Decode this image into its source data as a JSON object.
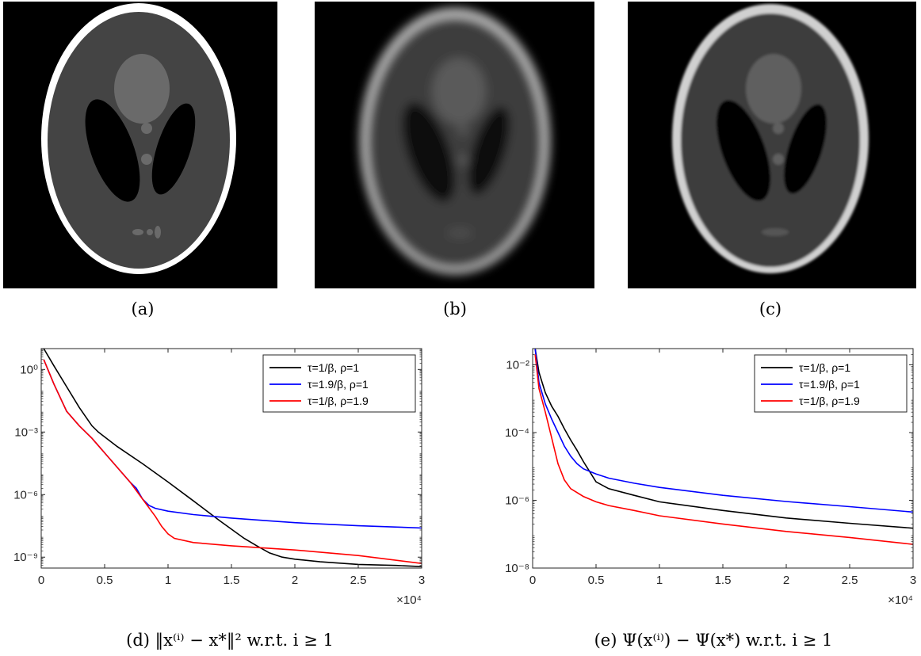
{
  "captions": {
    "a": "(a)",
    "b": "(b)",
    "c": "(c)",
    "d": "(d) ‖x⁽ⁱ⁾ − x*‖² w.r.t. i ≥ 1",
    "e": "(e) Ψ(x⁽ⁱ⁾) − Ψ(x*) w.r.t. i ≥ 1"
  },
  "colors": {
    "series1": "#000000",
    "series2": "#0000ff",
    "series3": "#ff0000",
    "background": "#000000"
  },
  "chart_data": [
    {
      "type": "line",
      "y_scale": "log",
      "xlim": [
        0,
        30000
      ],
      "ylim": [
        3e-10,
        10
      ],
      "x_ticks": [
        0,
        5000,
        10000,
        15000,
        20000,
        25000,
        30000
      ],
      "x_tick_labels": [
        "0",
        "0.5",
        "1",
        "1.5",
        "2",
        "2.5",
        "3"
      ],
      "x_multiplier": "×10⁴",
      "y_ticks": [
        1e-09,
        1e-06,
        0.001,
        1
      ],
      "y_tick_labels": [
        "10⁻⁹",
        "10⁻⁶",
        "10⁻³",
        "10⁰"
      ],
      "legend_position": "top-right",
      "grid": false,
      "series": [
        {
          "name": "τ=1/β, ρ=1",
          "color": "#000000",
          "x": [
            200,
            1000,
            2000,
            3000,
            4000,
            4500,
            6000,
            8000,
            10000,
            12000,
            14000,
            16000,
            17000,
            18000,
            19000,
            20000,
            22000,
            25000,
            28000,
            30000
          ],
          "y": [
            10,
            1.5,
            0.15,
            0.015,
            0.002,
            0.001,
            0.0002,
            3e-05,
            4e-06,
            5e-07,
            6e-08,
            8e-09,
            3.5e-09,
            1.6e-09,
            1e-09,
            8e-10,
            6e-10,
            4.5e-10,
            4e-10,
            3.5e-10
          ]
        },
        {
          "name": "τ=1.9/β, ρ=1",
          "color": "#0000ff",
          "x": [
            200,
            1000,
            2000,
            3000,
            4000,
            5000,
            6000,
            7000,
            7500,
            8000,
            8500,
            9000,
            10000,
            12000,
            15000,
            18000,
            20000,
            25000,
            30000
          ],
          "y": [
            3,
            0.2,
            0.01,
            0.002,
            0.0005,
            0.0001,
            2e-05,
            4e-06,
            2e-06,
            6e-07,
            3e-07,
            2.2e-07,
            1.6e-07,
            1.1e-07,
            7.5e-08,
            5.5e-08,
            4.5e-08,
            3.2e-08,
            2.5e-08
          ]
        },
        {
          "name": "τ=1/β, ρ=1.9",
          "color": "#ff0000",
          "x": [
            200,
            1000,
            2000,
            3000,
            4000,
            5000,
            6000,
            7000,
            8000,
            9000,
            9500,
            10000,
            10500,
            12000,
            15000,
            20000,
            25000,
            30000
          ],
          "y": [
            3,
            0.2,
            0.01,
            0.002,
            0.0005,
            0.0001,
            2e-05,
            4e-06,
            6e-07,
            9e-08,
            3e-08,
            1.3e-08,
            8e-09,
            5e-09,
            3.5e-09,
            2.2e-09,
            1.2e-09,
            5e-10
          ]
        }
      ]
    },
    {
      "type": "line",
      "y_scale": "log",
      "xlim": [
        0,
        30000
      ],
      "ylim": [
        1e-08,
        0.03
      ],
      "x_ticks": [
        0,
        5000,
        10000,
        15000,
        20000,
        25000,
        30000
      ],
      "x_tick_labels": [
        "0",
        "0.5",
        "1",
        "1.5",
        "2",
        "2.5",
        "3"
      ],
      "x_multiplier": "×10⁴",
      "y_ticks": [
        1e-08,
        1e-06,
        0.0001,
        0.01
      ],
      "y_tick_labels": [
        "10⁻⁸",
        "10⁻⁶",
        "10⁻⁴",
        "10⁻²"
      ],
      "legend_position": "top-right",
      "grid": false,
      "series": [
        {
          "name": "τ=1/β, ρ=1",
          "color": "#000000",
          "x": [
            200,
            500,
            1000,
            1500,
            2000,
            2500,
            3000,
            3500,
            4000,
            4500,
            5000,
            6000,
            8000,
            10000,
            15000,
            20000,
            25000,
            30000
          ],
          "y": [
            0.03,
            0.006,
            0.0015,
            0.0006,
            0.0003,
            0.00013,
            6e-05,
            3e-05,
            1.4e-05,
            7e-06,
            3.5e-06,
            2.2e-06,
            1.4e-06,
            9e-07,
            5e-07,
            3e-07,
            2.1e-07,
            1.5e-07
          ]
        },
        {
          "name": "τ=1.9/β, ρ=1",
          "color": "#0000ff",
          "x": [
            200,
            500,
            1000,
            1500,
            2000,
            2500,
            3000,
            3500,
            4000,
            5000,
            6000,
            8000,
            10000,
            15000,
            20000,
            25000,
            30000
          ],
          "y": [
            0.03,
            0.003,
            0.0007,
            0.00025,
            0.0001,
            4e-05,
            2e-05,
            1.2e-05,
            8.5e-06,
            6e-06,
            4.5e-06,
            3.2e-06,
            2.4e-06,
            1.4e-06,
            9.2e-07,
            6.5e-07,
            4.5e-07
          ]
        },
        {
          "name": "τ=1/β, ρ=1.9",
          "color": "#ff0000",
          "x": [
            200,
            500,
            1000,
            1500,
            2000,
            2500,
            3000,
            4000,
            5000,
            6000,
            8000,
            10000,
            15000,
            20000,
            25000,
            30000
          ],
          "y": [
            0.02,
            0.002,
            0.0004,
            7e-05,
            1.2e-05,
            4e-06,
            2.2e-06,
            1.3e-06,
            9e-07,
            7e-07,
            5e-07,
            3.5e-07,
            2e-07,
            1.2e-07,
            8e-08,
            5e-08
          ]
        }
      ]
    }
  ]
}
